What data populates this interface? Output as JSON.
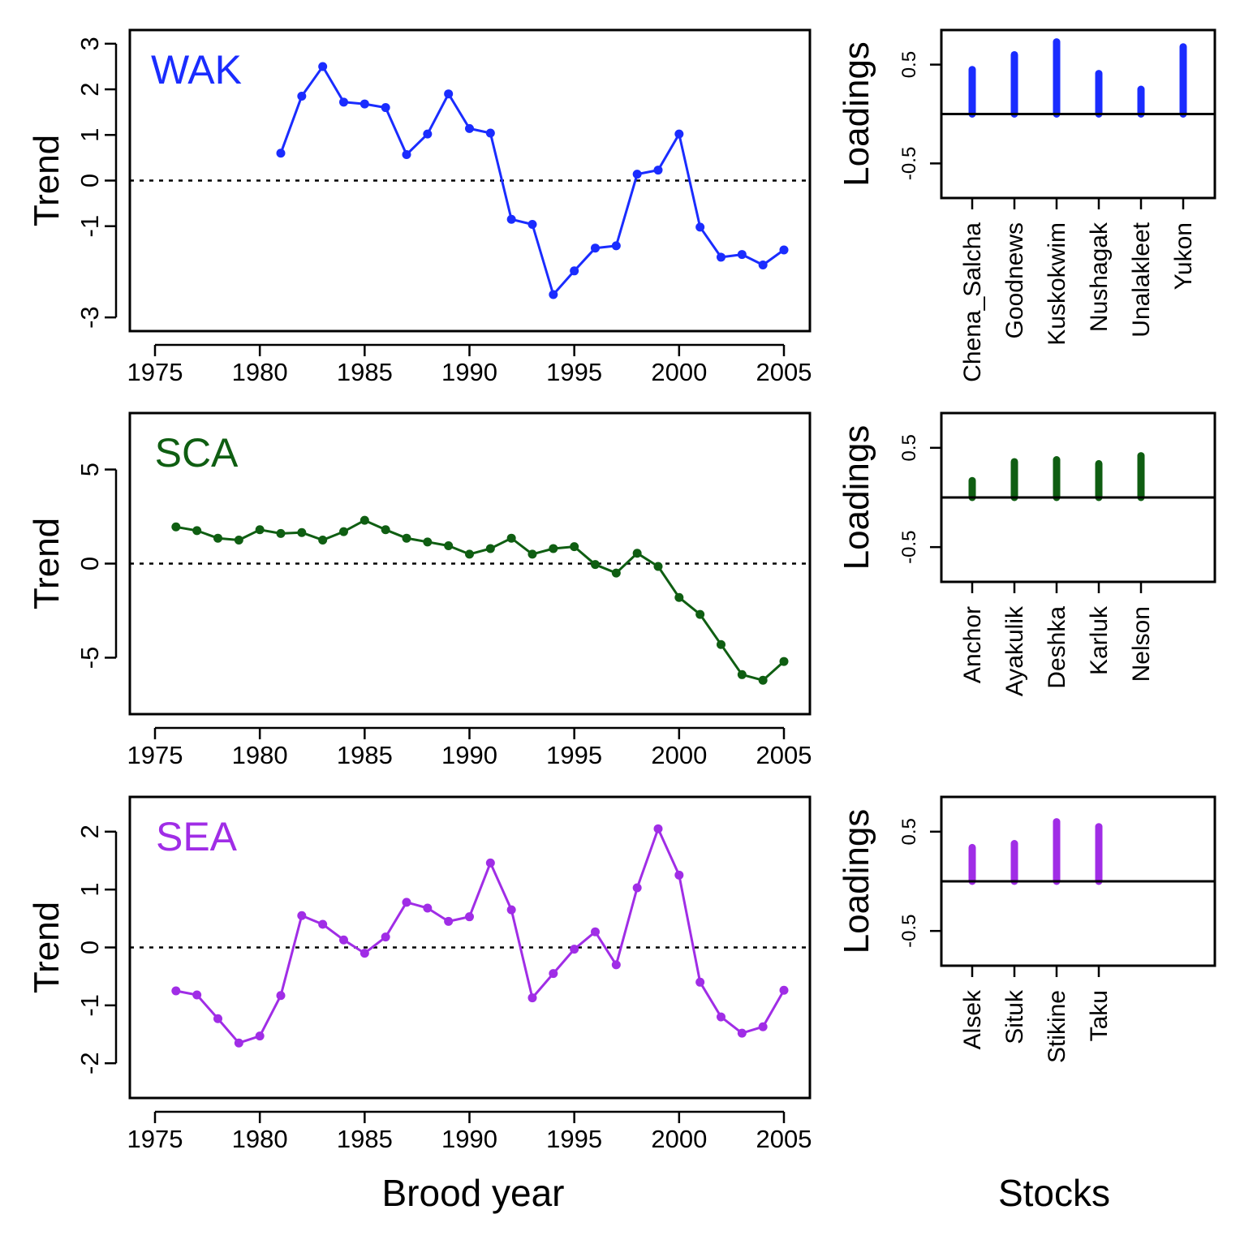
{
  "figure": {
    "xlabel": "Brood year",
    "stocks_label": "Stocks"
  },
  "chart_data": [
    {
      "type": "line",
      "label": "WAK",
      "color": "#1a2cff",
      "ylabel": "Trend",
      "xlim": [
        1975,
        2005
      ],
      "ylim": [
        -3.3,
        3.3
      ],
      "xticks": [
        1975,
        1980,
        1985,
        1990,
        1995,
        2000,
        2005
      ],
      "yticks": [
        -3,
        -1,
        0,
        1,
        2,
        3
      ],
      "reference_line": 0,
      "x": [
        1981,
        1982,
        1983,
        1984,
        1985,
        1986,
        1987,
        1988,
        1989,
        1990,
        1991,
        1992,
        1993,
        1994,
        1995,
        1996,
        1997,
        1998,
        1999,
        2000,
        2001,
        2002,
        2003,
        2004,
        2005
      ],
      "y": [
        0.6,
        1.85,
        2.5,
        1.72,
        1.68,
        1.6,
        0.57,
        1.02,
        1.9,
        1.14,
        1.04,
        -0.85,
        -0.96,
        -2.5,
        -1.98,
        -1.48,
        -1.43,
        0.14,
        0.23,
        1.02,
        -1.02,
        -1.68,
        -1.62,
        -1.85,
        -1.52
      ]
    },
    {
      "type": "line",
      "label": "SCA",
      "color": "#0f5e12",
      "ylabel": "Trend",
      "xlim": [
        1975,
        2005
      ],
      "ylim": [
        -8,
        8
      ],
      "xticks": [
        1975,
        1980,
        1985,
        1990,
        1995,
        2000,
        2005
      ],
      "yticks": [
        -5,
        0,
        5
      ],
      "reference_line": 0,
      "x": [
        1976,
        1977,
        1978,
        1979,
        1980,
        1981,
        1982,
        1983,
        1984,
        1985,
        1986,
        1987,
        1988,
        1989,
        1990,
        1991,
        1992,
        1993,
        1994,
        1995,
        1996,
        1997,
        1998,
        1999,
        2000,
        2001,
        2002,
        2003,
        2004,
        2005
      ],
      "y": [
        1.95,
        1.75,
        1.35,
        1.25,
        1.8,
        1.6,
        1.65,
        1.25,
        1.7,
        2.3,
        1.8,
        1.35,
        1.15,
        0.95,
        0.5,
        0.8,
        1.35,
        0.5,
        0.8,
        0.9,
        -0.05,
        -0.5,
        0.55,
        -0.15,
        -1.8,
        -2.7,
        -4.3,
        -5.9,
        -6.2,
        -5.2
      ]
    },
    {
      "type": "line",
      "label": "SEA",
      "color": "#a02de6",
      "ylabel": "Trend",
      "xlim": [
        1975,
        2005
      ],
      "ylim": [
        -2.6,
        2.6
      ],
      "xticks": [
        1975,
        1980,
        1985,
        1990,
        1995,
        2000,
        2005
      ],
      "yticks": [
        -2,
        -1,
        0,
        1,
        2
      ],
      "reference_line": 0,
      "x": [
        1976,
        1977,
        1978,
        1979,
        1980,
        1981,
        1982,
        1983,
        1984,
        1985,
        1986,
        1987,
        1988,
        1989,
        1990,
        1991,
        1992,
        1993,
        1994,
        1995,
        1996,
        1997,
        1998,
        1999,
        2000,
        2001,
        2002,
        2003,
        2004,
        2005
      ],
      "y": [
        -0.75,
        -0.82,
        -1.23,
        -1.65,
        -1.53,
        -0.83,
        0.55,
        0.4,
        0.13,
        -0.1,
        0.18,
        0.78,
        0.68,
        0.45,
        0.53,
        1.46,
        0.65,
        -0.87,
        -0.45,
        -0.03,
        0.27,
        -0.3,
        1.03,
        2.05,
        1.25,
        -0.6,
        -1.2,
        -1.48,
        -1.37,
        -0.74
      ]
    },
    {
      "type": "bar",
      "label": "WAK",
      "color": "#1a2cff",
      "ylabel": "Loadings",
      "ylim": [
        -0.85,
        0.85
      ],
      "yticks": [
        -0.5,
        0.5
      ],
      "categories": [
        "Chena_Salcha",
        "Goodnews",
        "Kuskokwim",
        "Nushagak",
        "Unalakleet",
        "Yukon"
      ],
      "values": [
        0.45,
        0.6,
        0.73,
        0.41,
        0.25,
        0.68
      ]
    },
    {
      "type": "bar",
      "label": "SCA",
      "color": "#0f5e12",
      "ylabel": "Loadings",
      "ylim": [
        -0.85,
        0.85
      ],
      "yticks": [
        -0.5,
        0.5
      ],
      "categories": [
        "Anchor",
        "Ayakulik",
        "Deshka",
        "Karluk",
        "Nelson"
      ],
      "values": [
        0.17,
        0.36,
        0.38,
        0.34,
        0.42
      ]
    },
    {
      "type": "bar",
      "label": "SEA",
      "color": "#a02de6",
      "ylabel": "Loadings",
      "ylim": [
        -0.85,
        0.85
      ],
      "yticks": [
        -0.5,
        0.5
      ],
      "categories": [
        "Alsek",
        "Situk",
        "Stikine",
        "Taku"
      ],
      "values": [
        0.34,
        0.38,
        0.6,
        0.55
      ]
    }
  ]
}
